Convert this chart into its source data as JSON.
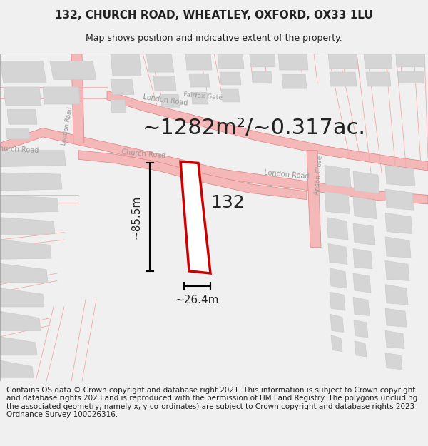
{
  "title": "132, CHURCH ROAD, WHEATLEY, OXFORD, OX33 1LU",
  "subtitle": "Map shows position and indicative extent of the property.",
  "area_text": "~1282m²/~0.317ac.",
  "label_132": "132",
  "dim_height": "~85.5m",
  "dim_width": "~26.4m",
  "footer": "Contains OS data © Crown copyright and database right 2021. This information is subject to Crown copyright and database rights 2023 and is reproduced with the permission of HM Land Registry. The polygons (including the associated geometry, namely x, y co-ordinates) are subject to Crown copyright and database rights 2023 Ordnance Survey 100026316.",
  "bg_color": "#f5f5f5",
  "map_bg": "#ffffff",
  "road_color_light": "#f5b8b8",
  "road_color_dark": "#e88080",
  "building_color": "#d9d9d9",
  "highlight_color": "#ff0000",
  "highlight_fill": "#ffffff",
  "text_color": "#222222",
  "road_label_color": "#888888",
  "title_fontsize": 11,
  "subtitle_fontsize": 9,
  "area_fontsize": 22,
  "label_fontsize": 18,
  "dim_fontsize": 11,
  "footer_fontsize": 7.5
}
